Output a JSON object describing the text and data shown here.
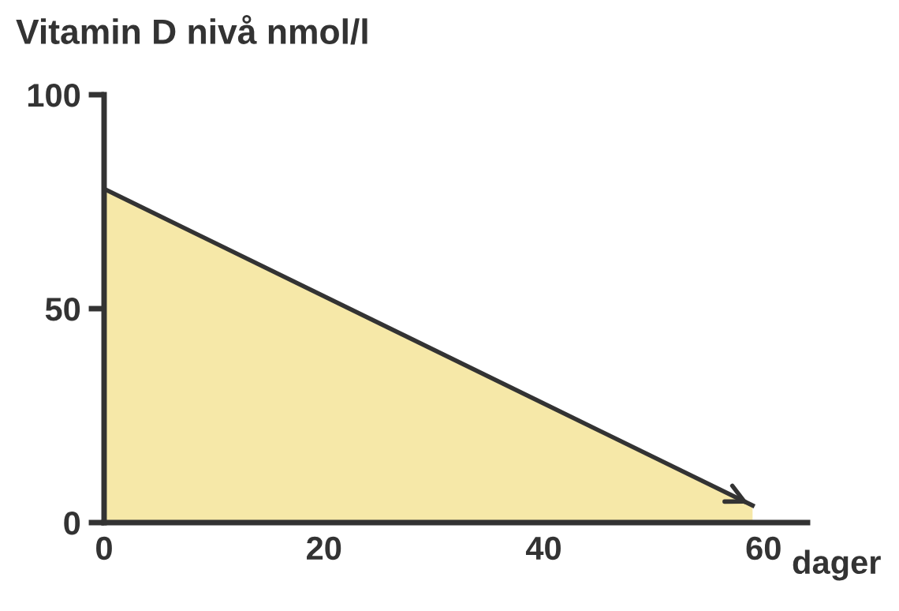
{
  "chart_data": {
    "type": "area",
    "title": "Vitamin D nivå nmol/l",
    "xlabel": "dager",
    "series": [
      {
        "x": [
          0,
          59
        ],
        "values": [
          78,
          4
        ],
        "color": "#f6e8a8"
      }
    ],
    "xlim": [
      0,
      64
    ],
    "ylim": [
      0,
      100
    ],
    "xticks": [
      0,
      20,
      40,
      60
    ],
    "yticks": [
      0,
      50,
      100
    ],
    "grid": false,
    "legend": false
  }
}
